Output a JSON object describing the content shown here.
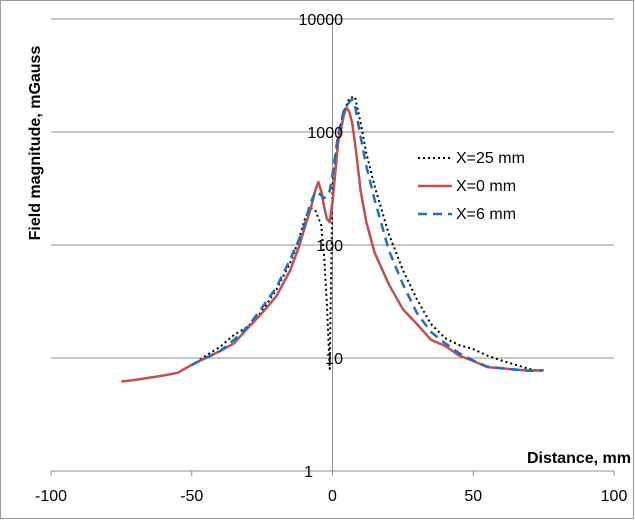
{
  "chart_data": {
    "type": "line",
    "xlabel": "Distance, mm",
    "ylabel": "Field magnitude, mGauss",
    "xlim": [
      -100,
      100
    ],
    "ylim": [
      1,
      10000
    ],
    "yscale": "log",
    "x_ticks": [
      -100,
      -50,
      0,
      50,
      100
    ],
    "y_ticks": [
      1,
      10,
      100,
      1000,
      10000
    ],
    "x_tick_labels": [
      "-100",
      "-50",
      "0",
      "50",
      "100"
    ],
    "y_tick_labels": [
      "1",
      "10",
      "100",
      "1000",
      "10000"
    ],
    "grid": "horizontal major gridlines",
    "legend_position": "right",
    "series": [
      {
        "name": "X=25 mm",
        "color": "#000000",
        "dash": "dotted",
        "x": [
          -50,
          -45,
          -40,
          -35,
          -30,
          -25,
          -20,
          -15,
          -12,
          -10,
          -8,
          -6,
          -4,
          -3,
          -2,
          -1,
          0,
          2,
          4,
          6,
          8,
          10,
          12,
          15,
          20,
          25,
          30,
          35,
          40,
          45,
          50,
          55,
          60,
          65,
          70,
          75
        ],
        "y": [
          8.6,
          10.5,
          12.5,
          16,
          19,
          26,
          40,
          70,
          110,
          165,
          215,
          200,
          150,
          80,
          30,
          8,
          330,
          900,
          1500,
          2000,
          2050,
          1200,
          650,
          330,
          125,
          60,
          33,
          20,
          15,
          13,
          12,
          10.5,
          9.5,
          8.7,
          8,
          7.6
        ]
      },
      {
        "name": "X=0 mm",
        "color": "#c0504d",
        "dash": "solid",
        "x": [
          -75,
          -70,
          -60,
          -55,
          -50,
          -45,
          -40,
          -35,
          -30,
          -25,
          -20,
          -15,
          -12,
          -10,
          -8,
          -6,
          -5,
          -4,
          -3,
          -2,
          -1,
          0,
          2,
          4,
          5,
          6,
          7,
          8,
          10,
          12,
          15,
          20,
          25,
          30,
          35,
          40,
          45,
          50,
          55,
          60,
          65,
          70,
          75
        ],
        "y": [
          6.2,
          6.4,
          7,
          7.4,
          8.7,
          10,
          11.5,
          13.5,
          18.5,
          25,
          35,
          60,
          95,
          140,
          200,
          310,
          360,
          300,
          220,
          170,
          160,
          240,
          800,
          1400,
          1650,
          1500,
          1200,
          800,
          300,
          160,
          85,
          45,
          27,
          20,
          14.5,
          12.8,
          10.5,
          9.4,
          8.3,
          8.1,
          7.9,
          7.7,
          7.8
        ]
      },
      {
        "name": "X=6 mm",
        "color": "#1f6fbf",
        "dash": "dashed",
        "x": [
          -50,
          -45,
          -40,
          -35,
          -30,
          -25,
          -20,
          -15,
          -12,
          -10,
          -8,
          -6,
          -4,
          -3,
          -2,
          -1,
          0,
          2,
          4,
          6,
          7,
          8,
          10,
          12,
          15,
          20,
          25,
          30,
          35,
          40,
          45,
          50,
          55,
          60,
          65,
          70,
          75
        ],
        "y": [
          8.7,
          10,
          11.5,
          14.5,
          19,
          28,
          42,
          75,
          110,
          150,
          230,
          300,
          275,
          260,
          270,
          300,
          420,
          950,
          1550,
          1850,
          1950,
          1700,
          900,
          500,
          250,
          90,
          45,
          25,
          17,
          13.5,
          11,
          9.5,
          8.4,
          8.1,
          7.9,
          7.7,
          7.8
        ]
      }
    ]
  }
}
